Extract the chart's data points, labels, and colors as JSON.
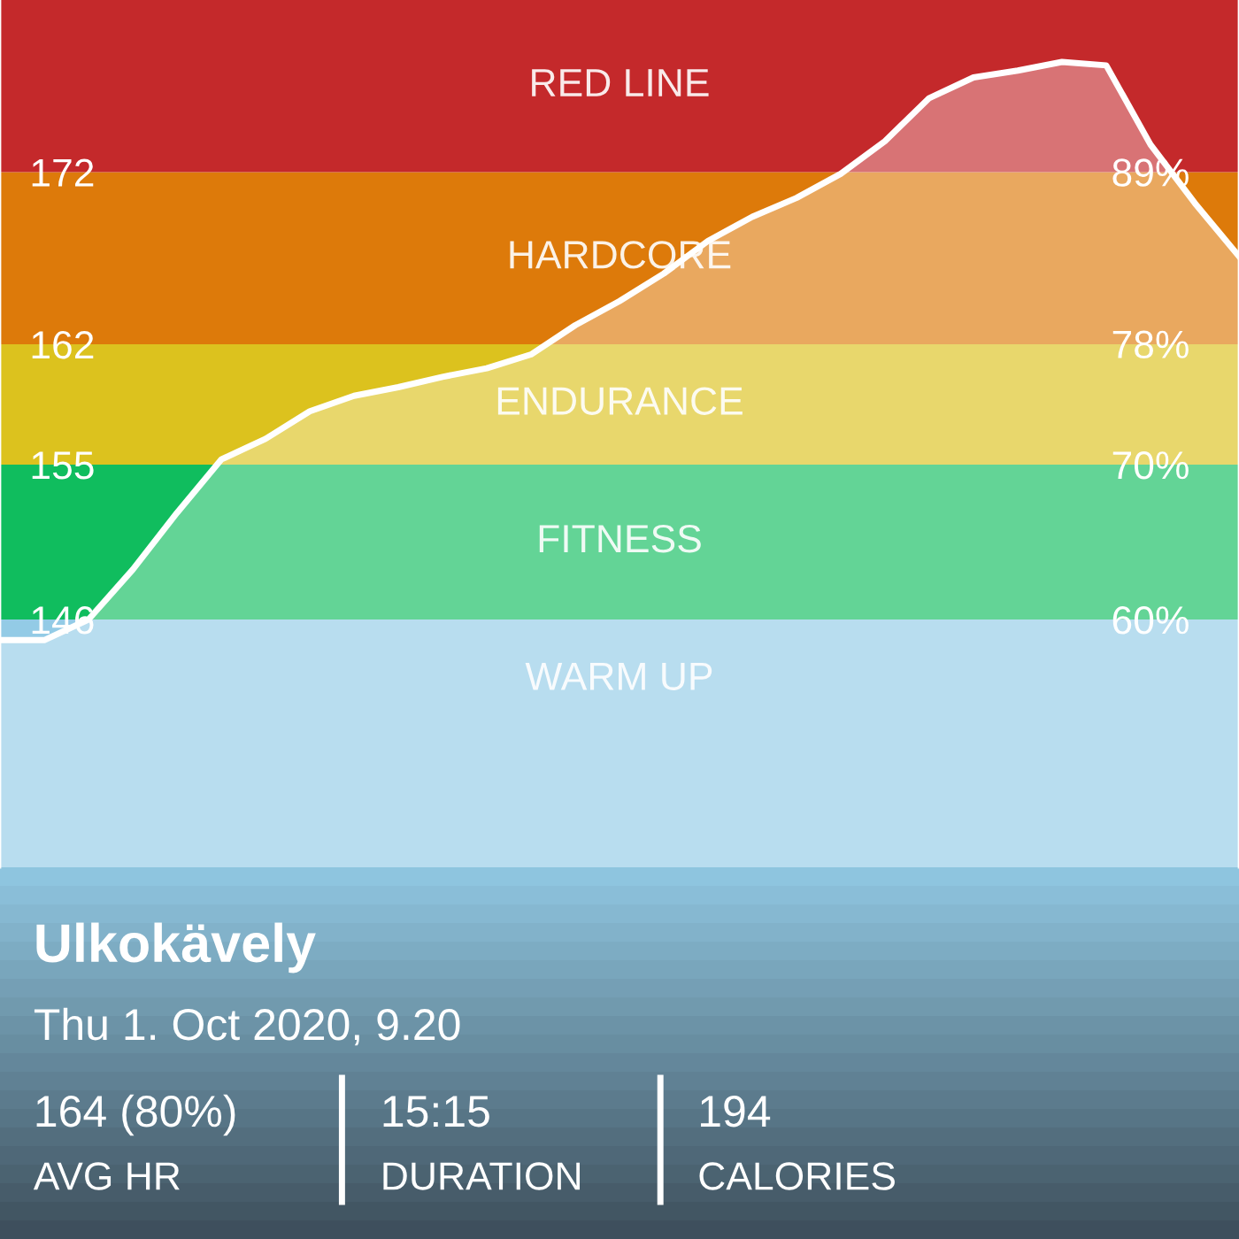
{
  "chart_data": {
    "type": "area",
    "categories": [
      null,
      null,
      null,
      null,
      null,
      null,
      null,
      null,
      null,
      null,
      null,
      null,
      null,
      null,
      null,
      null,
      null,
      null,
      null,
      null,
      null,
      null,
      null,
      null,
      null,
      null,
      null,
      null,
      null
    ],
    "series": [
      {
        "color": "#ffffff",
        "values": [
          144.8,
          144.8,
          146.0,
          148.9,
          152.2,
          155.3,
          156.5,
          158.1,
          159.0,
          159.5,
          160.1,
          160.6,
          161.4,
          163.1,
          164.5,
          166.1,
          168.0,
          169.4,
          170.5,
          171.9,
          173.8,
          176.3,
          177.5,
          177.9,
          178.4,
          178.2,
          173.6,
          170.2,
          167.1
        ]
      }
    ],
    "ylim": [
      131.6,
      182
    ],
    "yticks": [
      146,
      155,
      162,
      172
    ],
    "y2lim": [
      44,
      100
    ],
    "y2ticks": [
      {
        "value": 60,
        "label": "60%"
      },
      {
        "value": 70,
        "label": "70%"
      },
      {
        "value": 77.8,
        "label": "78%"
      },
      {
        "value": 88.9,
        "label": "89%"
      }
    ],
    "bands": [
      {
        "axis": "y",
        "from": 131.6,
        "to": 146,
        "label": "WARM UP",
        "color": "#93cbe6"
      },
      {
        "axis": "y",
        "from": 146,
        "to": 155,
        "label": "FITNESS",
        "color": "#10bd5e"
      },
      {
        "axis": "y",
        "from": 155,
        "to": 162,
        "label": "ENDURANCE",
        "color": "#dcc21e"
      },
      {
        "axis": "y",
        "from": 162,
        "to": 172,
        "label": "HARDCORE",
        "color": "#dd7a0a"
      },
      {
        "axis": "y",
        "from": 172,
        "to": 182,
        "label": "RED LINE",
        "color": "#c4292b"
      }
    ],
    "annotations": [
      "Ulkokävely",
      "Thu 1. Oct 2020, 9.20",
      "164 (80%)",
      "AVG HR",
      "15:15",
      "DURATION",
      "194",
      "CALORIES"
    ],
    "grid": false,
    "legend": false
  }
}
